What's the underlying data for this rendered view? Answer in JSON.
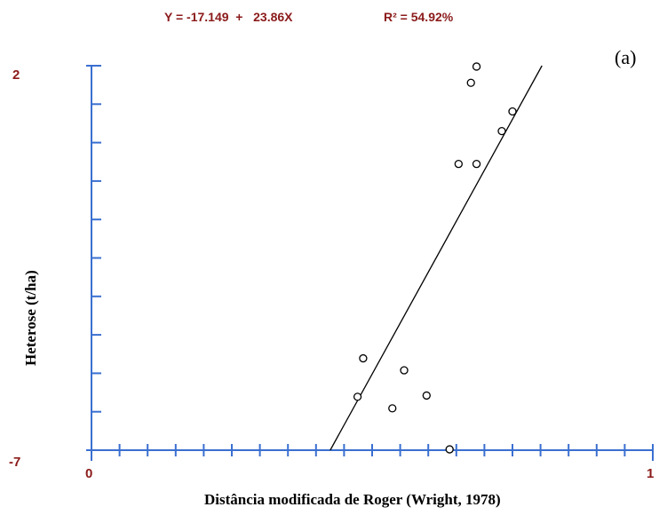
{
  "chart_data": {
    "type": "scatter",
    "equation_text": "Y = -17.149  +   23.86X",
    "r2_text": "R² = 54.92%",
    "panel_label": "(a)",
    "xlabel": "Distância modificada de Roger (Wright, 1978)",
    "ylabel": "Heterose (t/ha)",
    "xlim": [
      0,
      1
    ],
    "ylim": [
      -7,
      2
    ],
    "x_tick_labels": [
      "0",
      "1"
    ],
    "y_tick_labels": [
      "2",
      "-7"
    ],
    "x_minor_ticks": 20,
    "y_minor_ticks": 10,
    "regression": {
      "intercept": -17.149,
      "slope": 23.86
    },
    "points": [
      {
        "x": 0.686,
        "y": 1.98
      },
      {
        "x": 0.676,
        "y": 1.6
      },
      {
        "x": 0.75,
        "y": 0.93
      },
      {
        "x": 0.731,
        "y": 0.47
      },
      {
        "x": 0.654,
        "y": -0.3
      },
      {
        "x": 0.686,
        "y": -0.3
      },
      {
        "x": 0.484,
        "y": -4.85
      },
      {
        "x": 0.557,
        "y": -5.13
      },
      {
        "x": 0.474,
        "y": -5.75
      },
      {
        "x": 0.597,
        "y": -5.72
      },
      {
        "x": 0.536,
        "y": -6.02
      },
      {
        "x": 0.638,
        "y": -6.98
      }
    ],
    "colors": {
      "axis": "#3a6fd0",
      "label": "#8b1a1a",
      "line": "#000000",
      "point": "#000000"
    }
  }
}
